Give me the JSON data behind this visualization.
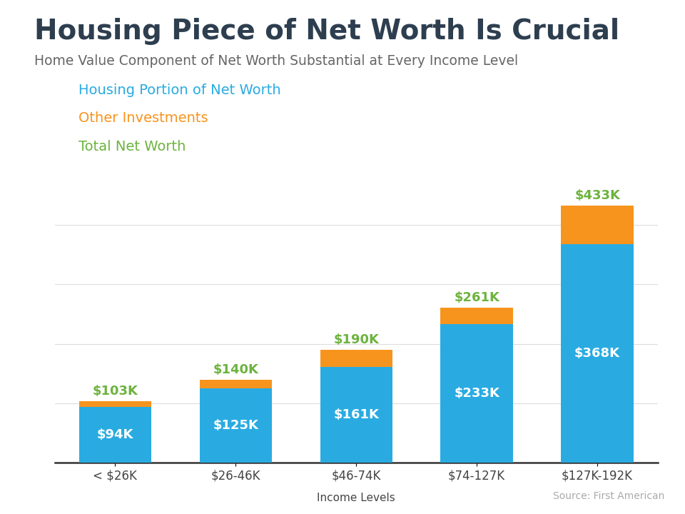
{
  "title": "Housing Piece of Net Worth Is Crucial",
  "subtitle": "Home Value Component of Net Worth Substantial at Every Income Level",
  "xlabel": "Income Levels",
  "source": "Source: First American",
  "categories": [
    "< $26K",
    "$26-46K",
    "$46-74K",
    "$74-127K",
    "$127K-192K"
  ],
  "housing_values": [
    94,
    125,
    161,
    233,
    368
  ],
  "other_values": [
    9,
    15,
    29,
    28,
    65
  ],
  "total_labels": [
    "$103K",
    "$140K",
    "$190K",
    "$261K",
    "$433K"
  ],
  "housing_labels": [
    "$94K",
    "$125K",
    "$161K",
    "$233K",
    "$368K"
  ],
  "housing_color": "#29ABE2",
  "other_color": "#F7941D",
  "total_label_color": "#6DB33F",
  "housing_label_color": "#FFFFFF",
  "title_color": "#2D3E4F",
  "subtitle_color": "#666666",
  "background_color": "#FFFFFF",
  "accent_bar_color": "#29ABE2",
  "ylim": [
    0,
    450
  ],
  "bar_width": 0.6,
  "legend_housing_color": "#29ABE2",
  "legend_other_color": "#F7941D",
  "legend_total_color": "#6DB33F",
  "grid_color": "#DDDDDD",
  "axis_color": "#333333",
  "tick_color": "#444444",
  "source_color": "#AAAAAA"
}
